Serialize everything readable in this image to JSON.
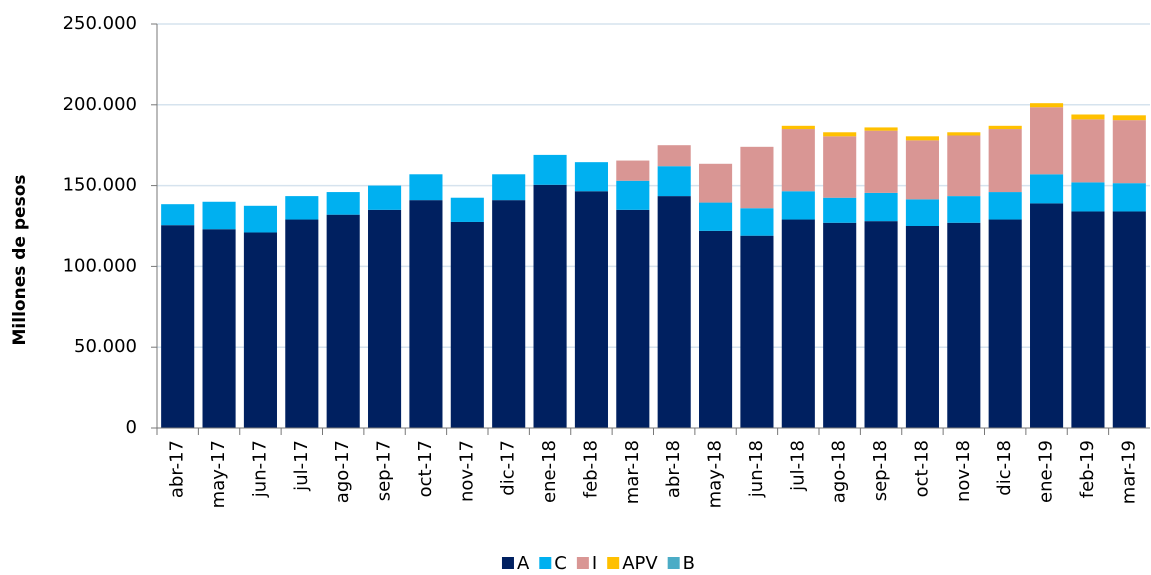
{
  "chart_data": {
    "type": "stacked_bar",
    "y_label": "Millones de pesos",
    "categories": [
      "abr-17",
      "may-17",
      "jun-17",
      "jul-17",
      "ago-17",
      "sep-17",
      "oct-17",
      "nov-17",
      "dic-17",
      "ene-18",
      "feb-18",
      "mar-18",
      "abr-18",
      "may-18",
      "jun-18",
      "jul-18",
      "ago-18",
      "sep-18",
      "oct-18",
      "nov-18",
      "dic-18",
      "ene-19",
      "feb-19",
      "mar-19"
    ],
    "series": [
      {
        "name": "A",
        "color": "#002060",
        "values": [
          125500,
          123000,
          121000,
          129000,
          132000,
          135000,
          141000,
          127500,
          141000,
          150500,
          146500,
          135000,
          143500,
          122000,
          119000,
          129000,
          127000,
          128000,
          125000,
          127000,
          129000,
          139000,
          134000,
          134000
        ]
      },
      {
        "name": "C",
        "color": "#00b0f0",
        "values": [
          13000,
          17000,
          16500,
          14500,
          14000,
          15000,
          16000,
          15000,
          16000,
          18500,
          18000,
          18000,
          18500,
          17500,
          17000,
          17500,
          15500,
          17500,
          16500,
          16500,
          17000,
          18000,
          18000,
          17500
        ]
      },
      {
        "name": "I",
        "color": "#d99694",
        "values": [
          0,
          0,
          0,
          0,
          0,
          0,
          0,
          0,
          0,
          0,
          0,
          12500,
          13000,
          24000,
          38000,
          38500,
          38000,
          38500,
          36500,
          37500,
          39000,
          41500,
          39000,
          39000
        ]
      },
      {
        "name": "APV",
        "color": "#ffc000",
        "values": [
          0,
          0,
          0,
          0,
          0,
          0,
          0,
          0,
          0,
          0,
          0,
          0,
          0,
          0,
          0,
          2000,
          2500,
          2000,
          2500,
          2000,
          2000,
          2500,
          3000,
          3000
        ]
      },
      {
        "name": "B",
        "color": "#4bacc6",
        "values": [
          0,
          0,
          0,
          0,
          0,
          0,
          0,
          0,
          0,
          0,
          0,
          0,
          0,
          0,
          0,
          0,
          0,
          0,
          0,
          0,
          0,
          0,
          0,
          0
        ]
      }
    ],
    "ylim": [
      0,
      250000
    ],
    "yticks": [
      0,
      {
        "value": 50000,
        "label": "50.000"
      },
      {
        "value": 100000,
        "label": "100.000"
      },
      {
        "value": 150000,
        "label": "150.000"
      },
      {
        "value": 200000,
        "label": "200.000"
      },
      {
        "value": 250000,
        "label": "250.000"
      }
    ],
    "grid": true,
    "legend": "bottom"
  }
}
